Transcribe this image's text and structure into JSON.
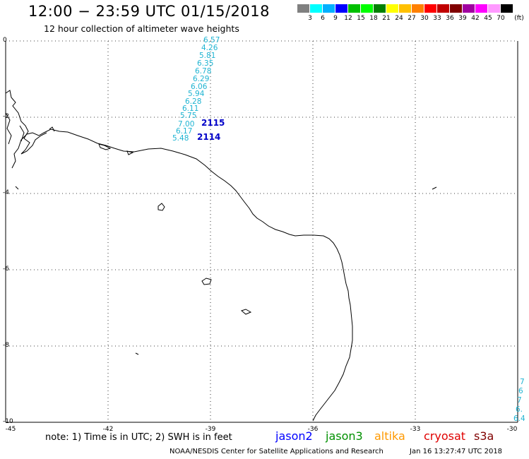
{
  "header": {
    "title": "12:00 − 23:59 UTC 01/15/2018",
    "subtitle": "12 hour collection of altimeter wave heights"
  },
  "scale": {
    "unit": "(ft)",
    "colors": [
      "#808080",
      "#00ffff",
      "#00b0ff",
      "#0000ff",
      "#00c000",
      "#00ff00",
      "#008000",
      "#ffff00",
      "#ffc000",
      "#ff8000",
      "#ff0000",
      "#c00000",
      "#800000",
      "#a000a0",
      "#ff00ff",
      "#ff99ff",
      "#000000"
    ],
    "labels": [
      "3",
      "6",
      "9",
      "12",
      "15",
      "18",
      "21",
      "24",
      "27",
      "30",
      "33",
      "36",
      "39",
      "42",
      "45",
      "70"
    ]
  },
  "map": {
    "lat_labels": [
      "0",
      "-2",
      "-4",
      "-6",
      "-8",
      "-10"
    ],
    "lon_labels": [
      "-45",
      "-42",
      "-39",
      "-36",
      "-33",
      "-30"
    ],
    "track_values": [
      "6.57",
      "4.26",
      "5.81",
      "6.35",
      "6.78",
      "6.29",
      "6.06",
      "5.94",
      "6.28",
      "6.11",
      "5.75",
      "7.00",
      "6.17",
      "5.48"
    ],
    "track_times": [
      "2115",
      "2114"
    ],
    "edge_values": [
      "7",
      "6",
      "7",
      "6.",
      "6.4"
    ]
  },
  "footer": {
    "note": "note: 1) Time is in UTC; 2) SWH is in feet",
    "satellites": [
      {
        "name": "jason2",
        "color": "#0000ff"
      },
      {
        "name": "jason3",
        "color": "#009000"
      },
      {
        "name": "altika",
        "color": "#ff9900"
      },
      {
        "name": "cryosat",
        "color": "#e00000"
      },
      {
        "name": "s3a",
        "color": "#800000"
      }
    ],
    "credit": "NOAA/NESDIS Center for Satellite Applications and Research",
    "timestamp": "Jan 16 13:27:47 UTC 2018"
  }
}
